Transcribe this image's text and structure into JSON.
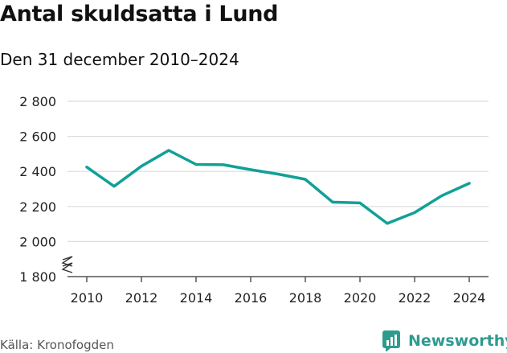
{
  "title": "Antal skuldsatta i Lund",
  "subtitle": "Den 31 december 2010–2024",
  "source": "Källa: Kronofogden",
  "brand": {
    "name": "Newsworthy",
    "icon": "bar-chart-logo-icon",
    "color": "#2e9b8f"
  },
  "chart_data": {
    "type": "line",
    "title": "Antal skuldsatta i Lund",
    "subtitle": "Den 31 december 2010–2024",
    "x": [
      2010,
      2011,
      2012,
      2013,
      2014,
      2015,
      2016,
      2017,
      2018,
      2019,
      2020,
      2021,
      2022,
      2023,
      2024
    ],
    "series": [
      {
        "values": [
          2425,
          2315,
          2430,
          2520,
          2440,
          2438,
          2410,
          2385,
          2355,
          2225,
          2220,
          2103,
          2165,
          2262,
          2332
        ],
        "color": "#11a097"
      }
    ],
    "x_ticks": [
      2010,
      2012,
      2014,
      2016,
      2018,
      2020,
      2022,
      2024
    ],
    "x_tick_labels": [
      "2010",
      "2012",
      "2014",
      "2016",
      "2018",
      "2020",
      "2022",
      "2024"
    ],
    "y_ticks": [
      1800,
      2000,
      2200,
      2400,
      2600,
      2800
    ],
    "y_tick_labels": [
      "1 800",
      "2 000",
      "2 200",
      "2 400",
      "2 600",
      "2 800"
    ],
    "ylim": [
      1800,
      2800
    ],
    "xlim": [
      2010,
      2024
    ],
    "y_axis_break": true,
    "grid": true,
    "xlabel": "",
    "ylabel": ""
  }
}
